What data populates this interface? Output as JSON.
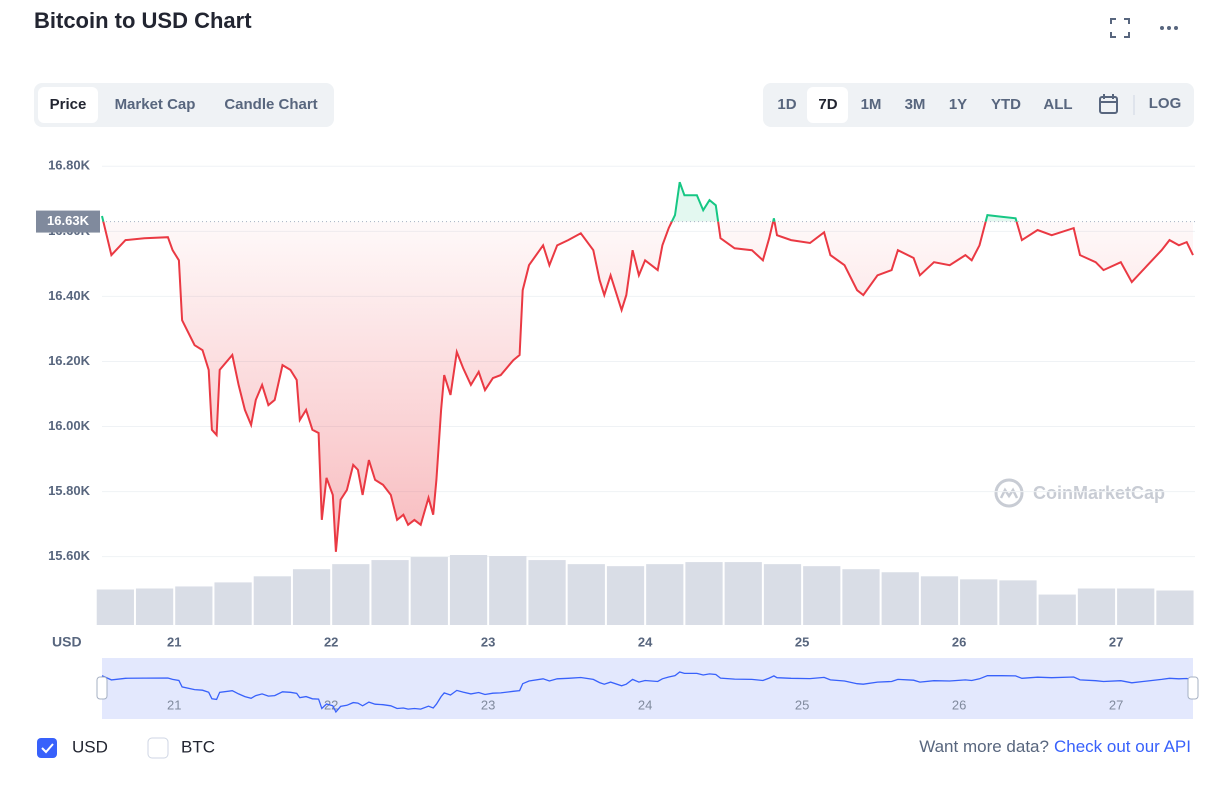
{
  "chart_data": {
    "type": "line",
    "title": "Bitcoin to USD Chart",
    "x_label": "USD",
    "x": [
      20.54,
      20.6,
      20.69,
      20.81,
      20.96,
      20.99,
      21.03,
      21.05,
      21.13,
      21.18,
      21.22,
      21.24,
      21.27,
      21.29,
      21.37,
      21.41,
      21.45,
      21.49,
      21.52,
      21.56,
      21.6,
      21.64,
      21.69,
      21.74,
      21.78,
      21.8,
      21.84,
      21.88,
      21.92,
      21.94,
      21.97,
      22.01,
      22.03,
      22.06,
      22.1,
      22.14,
      22.17,
      22.2,
      22.24,
      22.28,
      22.33,
      22.38,
      22.42,
      22.46,
      22.49,
      22.53,
      22.57,
      22.62,
      22.65,
      22.67,
      22.7,
      22.72,
      22.76,
      22.8,
      22.84,
      22.89,
      22.94,
      22.98,
      23.03,
      23.08,
      23.16,
      23.2,
      23.22,
      23.26,
      23.35,
      23.39,
      23.44,
      23.51,
      23.59,
      23.67,
      23.71,
      23.74,
      23.78,
      23.85,
      23.88,
      23.92,
      23.96,
      24.0,
      24.08,
      24.11,
      24.15,
      24.19,
      24.22,
      24.25,
      24.33,
      24.37,
      24.41,
      24.45,
      24.48,
      24.57,
      24.68,
      24.75,
      24.79,
      24.82,
      24.84,
      24.93,
      25.05,
      25.14,
      25.18,
      25.27,
      25.35,
      25.39,
      25.48,
      25.57,
      25.61,
      25.71,
      25.75,
      25.84,
      25.94,
      26.04,
      26.08,
      26.13,
      26.18,
      26.27,
      26.36,
      26.4,
      26.5,
      26.59,
      26.73,
      26.77,
      26.87,
      26.92,
      27.03,
      27.1,
      27.2,
      27.29,
      27.34,
      27.4,
      27.45,
      27.49
    ],
    "series": [
      {
        "name": "USD",
        "color": "#ea3943",
        "color_above": "#16c784",
        "values": [
          16647,
          16527,
          16573,
          16579,
          16582,
          16542,
          16511,
          16327,
          16250,
          16235,
          16174,
          15990,
          15974,
          16174,
          16220,
          16128,
          16051,
          16005,
          16082,
          16128,
          16066,
          16082,
          16189,
          16174,
          16143,
          16020,
          16051,
          15990,
          15980,
          15713,
          15842,
          15790,
          15615,
          15775,
          15805,
          15882,
          15867,
          15790,
          15897,
          15836,
          15821,
          15790,
          15713,
          15729,
          15698,
          15713,
          15698,
          15781,
          15729,
          15836,
          16051,
          16158,
          16097,
          16229,
          16180,
          16128,
          16168,
          16112,
          16149,
          16158,
          16204,
          16220,
          16419,
          16496,
          16557,
          16496,
          16557,
          16573,
          16594,
          16542,
          16450,
          16404,
          16465,
          16358,
          16404,
          16542,
          16465,
          16511,
          16481,
          16557,
          16610,
          16650,
          16751,
          16711,
          16711,
          16665,
          16696,
          16680,
          16579,
          16548,
          16542,
          16511,
          16579,
          16640,
          16588,
          16573,
          16564,
          16597,
          16527,
          16496,
          16419,
          16404,
          16465,
          16481,
          16542,
          16518,
          16465,
          16505,
          16496,
          16527,
          16511,
          16557,
          16650,
          16645,
          16640,
          16573,
          16604,
          16588,
          16610,
          16527,
          16505,
          16481,
          16505,
          16444,
          16496,
          16542,
          16573,
          16557,
          16567,
          16527
        ]
      }
    ],
    "reference": {
      "value": 16630,
      "label": "16.63K"
    },
    "volume": {
      "color": "#d9dde6",
      "x": [
        20.625,
        20.875,
        21.125,
        21.375,
        21.625,
        21.875,
        22.125,
        22.375,
        22.625,
        22.875,
        23.125,
        23.375,
        23.625,
        23.875,
        24.125,
        24.375,
        24.625,
        24.875,
        25.125,
        25.375,
        25.625,
        25.875,
        26.125,
        26.375,
        26.625,
        26.875,
        27.125,
        27.375
      ],
      "values": [
        35,
        36,
        38,
        42,
        48,
        55,
        60,
        64,
        67,
        69,
        68,
        64,
        60,
        58,
        60,
        62,
        62,
        60,
        58,
        55,
        52,
        48,
        45,
        44,
        30,
        36,
        36,
        34
      ]
    },
    "xlim": [
      20.54,
      27.49
    ],
    "xticks": [
      21,
      22,
      23,
      24,
      25,
      26,
      27
    ],
    "ylim": [
      15390,
      16850
    ],
    "yticks": [
      {
        "value": 15600,
        "label": "15.60K"
      },
      {
        "value": 15800,
        "label": "15.80K"
      },
      {
        "value": 16000,
        "label": "16.00K"
      },
      {
        "value": 16200,
        "label": "16.20K"
      },
      {
        "value": 16400,
        "label": "16.40K"
      },
      {
        "value": 16600,
        "label": "16.60K"
      },
      {
        "value": 16800,
        "label": "16.80K"
      }
    ],
    "grid": true
  },
  "ui": {
    "tabs": [
      "Price",
      "Market Cap",
      "Candle Chart"
    ],
    "ranges": [
      "1D",
      "7D",
      "1M",
      "3M",
      "1Y",
      "YTD",
      "ALL"
    ],
    "log": "LOG",
    "watermark": "CoinMarketCap",
    "other_currency": "BTC",
    "more_data": "Want more data?",
    "api_link": "Check out our API"
  }
}
